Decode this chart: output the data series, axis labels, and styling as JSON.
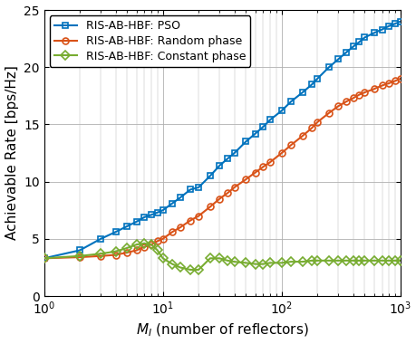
{
  "title": "",
  "xlabel": "$M_I$ (number of reflectors)",
  "ylabel": "Achievable Rate [bps/Hz]",
  "ylim": [
    0,
    25
  ],
  "yticks": [
    0,
    5,
    10,
    15,
    20,
    25
  ],
  "colors": {
    "pso": "#0072BD",
    "random": "#D95319",
    "constant": "#77AC30"
  },
  "legend": [
    "RIS-AB-HBF: PSO",
    "RIS-AB-HBF: Random phase",
    "RIS-AB-HBF: Constant phase"
  ],
  "markers": {
    "pso": "s",
    "random": "o",
    "constant": "D"
  },
  "pso_x": [
    1,
    2,
    3,
    4,
    5,
    6,
    7,
    8,
    9,
    10,
    12,
    14,
    17,
    20,
    25,
    30,
    35,
    40,
    50,
    60,
    70,
    80,
    100,
    120,
    150,
    180,
    200,
    250,
    300,
    350,
    400,
    450,
    500,
    600,
    700,
    800,
    900,
    1000
  ],
  "pso_y": [
    3.3,
    4.0,
    5.0,
    5.6,
    6.1,
    6.5,
    6.9,
    7.1,
    7.3,
    7.5,
    8.1,
    8.6,
    9.3,
    9.5,
    10.5,
    11.4,
    12.0,
    12.5,
    13.5,
    14.2,
    14.8,
    15.4,
    16.2,
    17.0,
    17.8,
    18.5,
    19.0,
    20.0,
    20.7,
    21.3,
    21.8,
    22.2,
    22.6,
    23.0,
    23.3,
    23.6,
    23.8,
    24.0
  ],
  "random_x": [
    1,
    2,
    3,
    4,
    5,
    6,
    7,
    8,
    9,
    10,
    12,
    14,
    17,
    20,
    25,
    30,
    35,
    40,
    50,
    60,
    70,
    80,
    100,
    120,
    150,
    180,
    200,
    250,
    300,
    350,
    400,
    450,
    500,
    600,
    700,
    800,
    900,
    1000
  ],
  "random_y": [
    3.3,
    3.4,
    3.5,
    3.6,
    3.8,
    4.0,
    4.3,
    4.5,
    4.8,
    5.0,
    5.6,
    6.0,
    6.6,
    7.0,
    7.8,
    8.5,
    9.0,
    9.5,
    10.2,
    10.8,
    11.3,
    11.7,
    12.5,
    13.2,
    14.0,
    14.7,
    15.2,
    16.0,
    16.6,
    17.0,
    17.3,
    17.6,
    17.8,
    18.1,
    18.4,
    18.6,
    18.8,
    19.0
  ],
  "constant_x": [
    1,
    2,
    3,
    4,
    5,
    6,
    7,
    8,
    9,
    10,
    12,
    14,
    17,
    20,
    25,
    30,
    35,
    40,
    50,
    60,
    70,
    80,
    100,
    120,
    150,
    180,
    200,
    250,
    300,
    350,
    400,
    450,
    500,
    600,
    700,
    800,
    900,
    1000
  ],
  "constant_y": [
    3.3,
    3.5,
    3.7,
    3.9,
    4.2,
    4.5,
    4.6,
    4.5,
    4.0,
    3.3,
    2.8,
    2.5,
    2.3,
    2.3,
    3.3,
    3.3,
    3.1,
    3.0,
    2.9,
    2.8,
    2.8,
    2.9,
    2.9,
    3.0,
    3.0,
    3.1,
    3.1,
    3.1,
    3.1,
    3.1,
    3.1,
    3.1,
    3.1,
    3.1,
    3.1,
    3.1,
    3.1,
    3.1
  ],
  "background_color": "#ffffff",
  "grid_color": "#b0b0b0",
  "linewidth": 1.5,
  "markersize": 5,
  "markeredgewidth": 1.2,
  "legend_fontsize": 9,
  "axis_fontsize": 11,
  "tick_fontsize": 10
}
